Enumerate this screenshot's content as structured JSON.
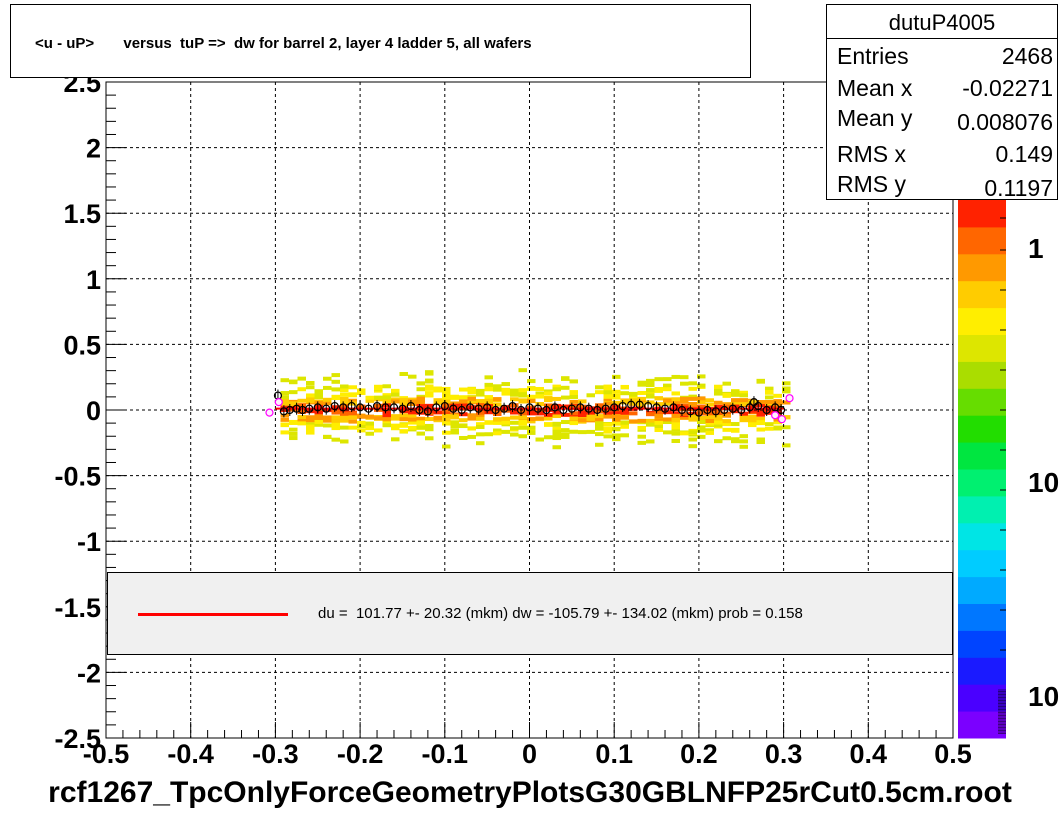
{
  "chart_data": {
    "type": "heatmap",
    "title": "<u - uP>       versus  tuP =>  dw for barrel 2, layer 4 ladder 5, all wafers",
    "xlim": [
      -0.5,
      0.5
    ],
    "ylim": [
      -2.5,
      2.5
    ],
    "x_ticks": [
      "-0.5",
      "-0.4",
      "-0.3",
      "-0.2",
      "-0.1",
      "0",
      "0.1",
      "0.2",
      "0.3",
      "0.4",
      "0.5"
    ],
    "y_ticks": [
      "-2.5",
      "-2",
      "-1.5",
      "-1",
      "-0.5",
      "0",
      "0.5",
      "1",
      "1.5",
      "2",
      "2.5"
    ],
    "grid": true,
    "z_ticks": [
      "1",
      "10",
      "10"
    ],
    "profile_points": [
      [
        -0.297,
        0.11
      ],
      [
        -0.29,
        -0.01
      ],
      [
        -0.283,
        0.0
      ],
      [
        -0.275,
        0.01
      ],
      [
        -0.268,
        0.0
      ],
      [
        -0.26,
        0.01
      ],
      [
        -0.25,
        0.02
      ],
      [
        -0.24,
        0.01
      ],
      [
        -0.23,
        0.03
      ],
      [
        -0.22,
        0.02
      ],
      [
        -0.21,
        0.03
      ],
      [
        -0.2,
        0.02
      ],
      [
        -0.19,
        0.01
      ],
      [
        -0.18,
        0.03
      ],
      [
        -0.17,
        0.02
      ],
      [
        -0.16,
        0.02
      ],
      [
        -0.15,
        0.01
      ],
      [
        -0.14,
        0.03
      ],
      [
        -0.13,
        0.0
      ],
      [
        -0.12,
        -0.01
      ],
      [
        -0.11,
        0.02
      ],
      [
        -0.1,
        0.03
      ],
      [
        -0.09,
        0.01
      ],
      [
        -0.08,
        0.0
      ],
      [
        -0.07,
        0.02
      ],
      [
        -0.06,
        0.01
      ],
      [
        -0.05,
        0.02
      ],
      [
        -0.04,
        0.0
      ],
      [
        -0.03,
        0.01
      ],
      [
        -0.02,
        0.03
      ],
      [
        -0.01,
        0.0
      ],
      [
        0.0,
        0.02
      ],
      [
        0.01,
        0.01
      ],
      [
        0.02,
        0.0
      ],
      [
        0.03,
        0.02
      ],
      [
        0.04,
        0.0
      ],
      [
        0.05,
        0.01
      ],
      [
        0.06,
        0.02
      ],
      [
        0.07,
        0.01
      ],
      [
        0.08,
        0.0
      ],
      [
        0.09,
        0.01
      ],
      [
        0.1,
        0.02
      ],
      [
        0.11,
        0.03
      ],
      [
        0.12,
        0.04
      ],
      [
        0.13,
        0.04
      ],
      [
        0.14,
        0.03
      ],
      [
        0.15,
        0.02
      ],
      [
        0.16,
        0.01
      ],
      [
        0.17,
        0.02
      ],
      [
        0.18,
        0.0
      ],
      [
        0.19,
        -0.01
      ],
      [
        0.2,
        -0.02
      ],
      [
        0.21,
        0.0
      ],
      [
        0.22,
        -0.01
      ],
      [
        0.23,
        0.0
      ],
      [
        0.24,
        0.01
      ],
      [
        0.25,
        0.0
      ],
      [
        0.26,
        0.02
      ],
      [
        0.265,
        0.06
      ],
      [
        0.27,
        0.03
      ],
      [
        0.28,
        0.0
      ],
      [
        0.29,
        0.02
      ],
      [
        0.297,
        0.0
      ]
    ],
    "outlier_points": [
      [
        -0.307,
        -0.02
      ],
      [
        0.307,
        0.09
      ],
      [
        0.298,
        -0.07
      ],
      [
        0.29,
        -0.04
      ],
      [
        -0.296,
        0.06
      ]
    ],
    "fit_line": {
      "x": [
        -0.3,
        0.3
      ],
      "y": [
        0.0102,
        0.0102
      ]
    },
    "colors": {
      "fit": "#ff0000",
      "profile_marker": "#000000",
      "outlier_marker": "#ff00ff",
      "palette": [
        "#7b00ff",
        "#4a00ff",
        "#1a1aff",
        "#0044ff",
        "#0077ff",
        "#00aaff",
        "#00ccff",
        "#00e5e5",
        "#00f0b0",
        "#00f070",
        "#00e640",
        "#22dd00",
        "#66dd00",
        "#aadd00",
        "#dde600",
        "#ffee00",
        "#ffcc00",
        "#ff9900",
        "#ff6600",
        "#ff2200"
      ]
    }
  },
  "stats": {
    "name": "dutuP4005",
    "rows": [
      {
        "key": "Entries",
        "value": "2468"
      },
      {
        "key": "Mean x",
        "value": "-0.02271"
      },
      {
        "key": "Mean y",
        "value": "0.008076"
      },
      {
        "key": "RMS x",
        "value": "0.149"
      },
      {
        "key": "RMS y",
        "value": "0.1197"
      }
    ]
  },
  "fit_legend": {
    "text": "du =  101.77 +- 20.32 (mkm) dw = -105.79 +- 134.02 (mkm) prob = 0.158"
  },
  "footer": {
    "filename": "rcf1267_TpcOnlyForceGeometryPlotsG30GBLNFP25rCut0.5cm.root"
  }
}
